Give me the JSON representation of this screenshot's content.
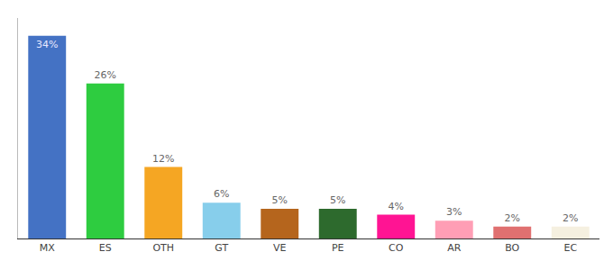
{
  "chart_data": {
    "type": "bar",
    "categories": [
      "MX",
      "ES",
      "OTH",
      "GT",
      "VE",
      "PE",
      "CO",
      "AR",
      "BO",
      "EC"
    ],
    "values": [
      34,
      26,
      12,
      6,
      5,
      5,
      4,
      3,
      2,
      2
    ],
    "value_labels": [
      "34%",
      "26%",
      "12%",
      "6%",
      "5%",
      "5%",
      "4%",
      "3%",
      "2%",
      "2%"
    ],
    "colors": [
      "#4472c4",
      "#2ecc40",
      "#f5a623",
      "#87ceeb",
      "#b5651d",
      "#2d6a2d",
      "#ff1493",
      "#ff9eb5",
      "#e07070",
      "#f5f0e0"
    ],
    "ylim": [
      0,
      37
    ],
    "data_labels": true,
    "tick_labels": "x",
    "grid": false
  }
}
